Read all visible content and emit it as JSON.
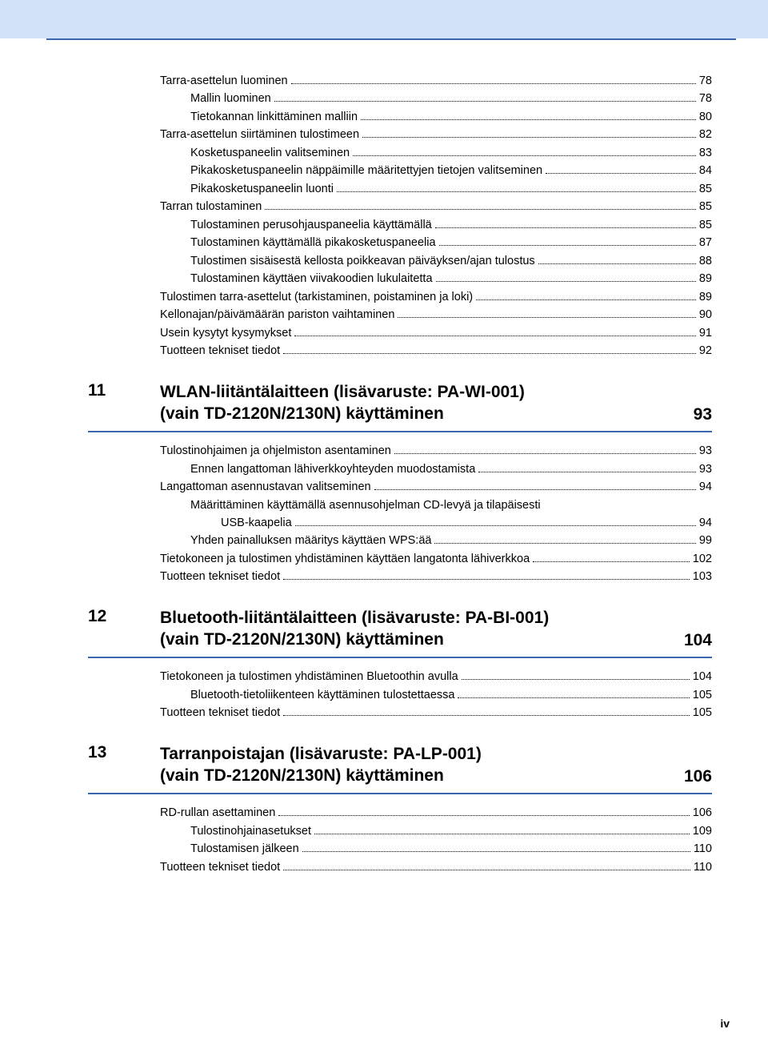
{
  "colors": {
    "header_bg": "#d4e3fa",
    "rule": "#3a66b0",
    "text": "#000000",
    "page_bg": "#ffffff"
  },
  "typography": {
    "body_fontsize_pt": 11,
    "heading_fontsize_pt": 16,
    "font_family": "Arial"
  },
  "top_block": [
    {
      "lvl": 1,
      "label": "Tarra-asettelun luominen",
      "pg": "78"
    },
    {
      "lvl": 2,
      "label": "Mallin luominen",
      "pg": "78"
    },
    {
      "lvl": 2,
      "label": "Tietokannan linkittäminen malliin",
      "pg": "80"
    },
    {
      "lvl": 1,
      "label": "Tarra-asettelun siirtäminen tulostimeen",
      "pg": "82"
    },
    {
      "lvl": 2,
      "label": "Kosketuspaneelin valitseminen",
      "pg": "83"
    },
    {
      "lvl": 2,
      "label": "Pikakosketuspaneelin näppäimille määritettyjen tietojen valitseminen",
      "pg": "84"
    },
    {
      "lvl": 2,
      "label": "Pikakosketuspaneelin luonti",
      "pg": "85"
    },
    {
      "lvl": 1,
      "label": "Tarran tulostaminen",
      "pg": "85"
    },
    {
      "lvl": 2,
      "label": "Tulostaminen perusohjauspaneelia käyttämällä",
      "pg": "85"
    },
    {
      "lvl": 2,
      "label": "Tulostaminen käyttämällä pikakosketuspaneelia",
      "pg": "87"
    },
    {
      "lvl": 2,
      "label": "Tulostimen sisäisestä kellosta poikkeavan päiväyksen/ajan tulostus",
      "pg": "88"
    },
    {
      "lvl": 2,
      "label": "Tulostaminen käyttäen viivakoodien lukulaitetta",
      "pg": "89"
    },
    {
      "lvl": 1,
      "label": "Tulostimen tarra-asettelut (tarkistaminen, poistaminen ja loki)",
      "pg": "89"
    },
    {
      "lvl": 1,
      "label": "Kellonajan/päivämäärän pariston vaihtaminen",
      "pg": "90"
    },
    {
      "lvl": 1,
      "label": "Usein kysytyt kysymykset",
      "pg": "91"
    },
    {
      "lvl": 1,
      "label": "Tuotteen tekniset tiedot",
      "pg": "92"
    }
  ],
  "sections": [
    {
      "num": "11",
      "title": "WLAN-liitäntälaitteen (lisävaruste: PA-WI-001)\n(vain TD-2120N/2130N) käyttäminen",
      "pg": "93",
      "items": [
        {
          "lvl": 1,
          "label": "Tulostinohjaimen ja ohjelmiston asentaminen",
          "pg": "93"
        },
        {
          "lvl": 2,
          "label": "Ennen langattoman lähiverkkoyhteyden muodostamista",
          "pg": "93"
        },
        {
          "lvl": 1,
          "label": "Langattoman asennustavan valitseminen",
          "pg": "94"
        },
        {
          "lvl": 2,
          "label": "Määrittäminen käyttämällä asennusohjelman CD-levyä ja tilapäisesti",
          "pg": ""
        },
        {
          "lvl": 3,
          "label": "USB-kaapelia",
          "pg": "94"
        },
        {
          "lvl": 2,
          "label": "Yhden painalluksen määritys käyttäen WPS:ää",
          "pg": "99"
        },
        {
          "lvl": 1,
          "label": "Tietokoneen ja tulostimen yhdistäminen käyttäen langatonta lähiverkkoa",
          "pg": "102"
        },
        {
          "lvl": 1,
          "label": "Tuotteen tekniset tiedot",
          "pg": "103"
        }
      ]
    },
    {
      "num": "12",
      "title": "Bluetooth-liitäntälaitteen (lisävaruste: PA-BI-001)\n(vain TD-2120N/2130N) käyttäminen",
      "pg": "104",
      "items": [
        {
          "lvl": 1,
          "label": "Tietokoneen ja tulostimen yhdistäminen Bluetoothin avulla",
          "pg": "104"
        },
        {
          "lvl": 2,
          "label": "Bluetooth-tietoliikenteen käyttäminen tulostettaessa",
          "pg": "105"
        },
        {
          "lvl": 1,
          "label": "Tuotteen tekniset tiedot",
          "pg": "105"
        }
      ]
    },
    {
      "num": "13",
      "title": "Tarranpoistajan (lisävaruste: PA-LP-001)\n(vain TD-2120N/2130N) käyttäminen",
      "pg": "106",
      "items": [
        {
          "lvl": 1,
          "label": "RD-rullan asettaminen",
          "pg": "106"
        },
        {
          "lvl": 2,
          "label": "Tulostinohjainasetukset",
          "pg": "109"
        },
        {
          "lvl": 2,
          "label": "Tulostamisen jälkeen",
          "pg": "110"
        },
        {
          "lvl": 1,
          "label": "Tuotteen tekniset tiedot",
          "pg": "110"
        }
      ]
    }
  ],
  "page_number": "iv"
}
